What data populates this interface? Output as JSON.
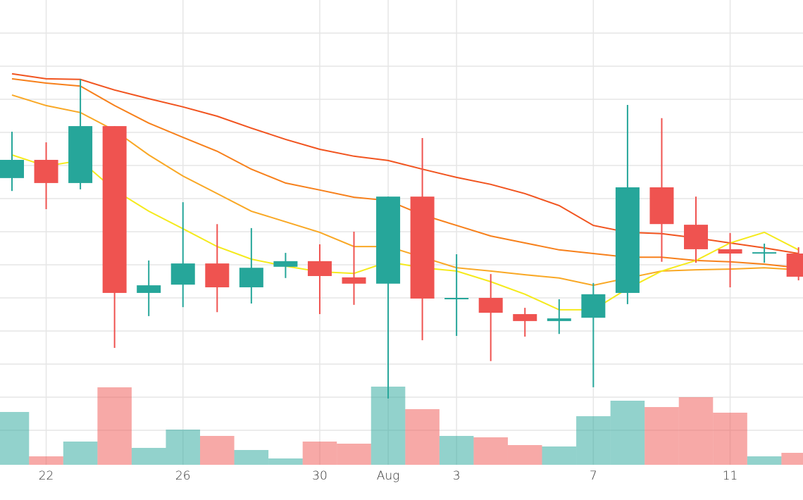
{
  "chart_data": {
    "type": "candlestick",
    "categories": [
      null,
      "22",
      null,
      null,
      null,
      "26",
      null,
      null,
      null,
      "30",
      null,
      "Aug",
      null,
      "3",
      null,
      null,
      null,
      "7",
      null,
      null,
      null,
      "11",
      null,
      null
    ],
    "open": [
      8.62,
      9.17,
      8.47,
      10.19,
      5.15,
      5.4,
      6.04,
      5.32,
      5.94,
      6.11,
      5.62,
      5.43,
      8.06,
      4.98,
      5.0,
      4.51,
      4.3,
      4.4,
      5.15,
      8.34,
      7.21,
      6.47,
      6.34,
      6.34
    ],
    "high": [
      10.02,
      9.7,
      11.6,
      10.19,
      6.13,
      7.89,
      7.23,
      7.11,
      6.36,
      6.62,
      7.0,
      8.06,
      9.83,
      6.32,
      5.72,
      4.7,
      4.96,
      5.45,
      10.83,
      10.43,
      8.06,
      6.96,
      6.64,
      6.53
    ],
    "low": [
      8.23,
      7.68,
      8.28,
      3.49,
      4.45,
      4.72,
      4.57,
      4.83,
      5.6,
      4.51,
      4.79,
      1.96,
      3.72,
      3.85,
      3.09,
      3.83,
      3.91,
      2.3,
      4.81,
      6.09,
      6.06,
      5.32,
      6.06,
      5.53
    ],
    "close": [
      9.17,
      8.47,
      10.19,
      5.15,
      5.38,
      6.04,
      5.32,
      5.91,
      6.11,
      5.66,
      5.43,
      8.06,
      4.98,
      5.0,
      4.55,
      4.3,
      4.38,
      5.11,
      8.34,
      7.23,
      6.47,
      6.34,
      6.38,
      5.64
    ],
    "volume": [
      75,
      12,
      33,
      110,
      24,
      50,
      41,
      21,
      9,
      33,
      30,
      111,
      79,
      41,
      39,
      28,
      26,
      69,
      91,
      82,
      96,
      74,
      12,
      17
    ],
    "up_color": "#26a69a",
    "down_color": "#ef5350",
    "series": [
      {
        "color": "#f1541f",
        "values": [
          11.77,
          11.62,
          11.6,
          11.28,
          11.02,
          10.77,
          10.49,
          10.13,
          9.79,
          9.49,
          9.28,
          9.15,
          8.89,
          8.64,
          8.43,
          8.15,
          7.79,
          7.19,
          6.98,
          6.94,
          6.81,
          6.66,
          6.51,
          6.34
        ]
      },
      {
        "color": "#f7801b",
        "values": [
          11.62,
          11.49,
          11.4,
          10.81,
          10.28,
          9.85,
          9.43,
          8.89,
          8.47,
          8.26,
          8.04,
          7.94,
          7.51,
          7.19,
          6.87,
          6.66,
          6.45,
          6.34,
          6.23,
          6.23,
          6.13,
          6.09,
          6.02,
          5.91
        ]
      },
      {
        "color": "#f9a825",
        "values": [
          11.13,
          10.81,
          10.6,
          10.06,
          9.32,
          8.68,
          8.15,
          7.62,
          7.3,
          6.98,
          6.55,
          6.55,
          6.23,
          5.91,
          5.81,
          5.7,
          5.6,
          5.38,
          5.6,
          5.81,
          5.85,
          5.87,
          5.91,
          5.85
        ]
      },
      {
        "color": "#f5ea1c",
        "values": [
          9.32,
          8.98,
          9.15,
          8.26,
          7.62,
          7.09,
          6.55,
          6.17,
          5.96,
          5.79,
          5.74,
          6.09,
          5.91,
          5.81,
          5.49,
          5.11,
          4.64,
          4.64,
          5.28,
          5.81,
          6.13,
          6.66,
          6.98,
          6.45
        ]
      }
    ],
    "ylim": [
      0,
      14
    ],
    "yticks": [
      1,
      2,
      3,
      4,
      5,
      6,
      7,
      8,
      9,
      10,
      11,
      12,
      13
    ],
    "vlim": [
      0,
      120
    ],
    "grid": true
  }
}
